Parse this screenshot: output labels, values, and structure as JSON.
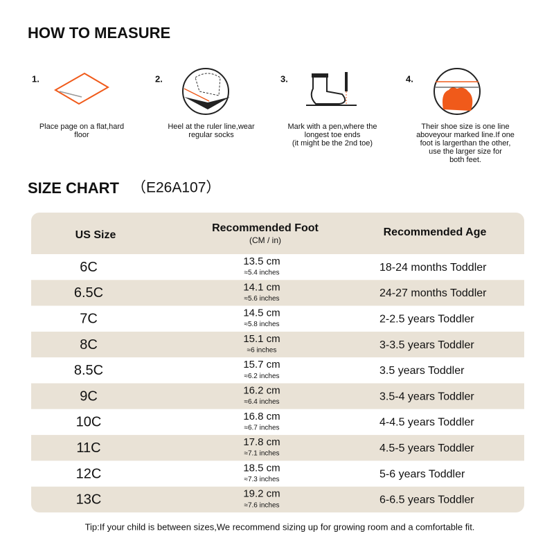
{
  "header": {
    "title": "HOW TO MEASURE"
  },
  "steps": [
    {
      "number": "1.",
      "lines": [
        "Place page on a flat,hard",
        "floor"
      ]
    },
    {
      "number": "2.",
      "lines": [
        "Heel at the ruler line,wear",
        "regular socks"
      ]
    },
    {
      "number": "3.",
      "lines": [
        "Mark with a pen,where the",
        "longest toe ends",
        "(it might be the 2nd toe)"
      ]
    },
    {
      "number": "4.",
      "lines": [
        "Their shoe size is one line",
        "aboveyour marked line.If one",
        "foot is largerthan the other,",
        "use the larger size for",
        "both feet."
      ]
    }
  ],
  "size_chart": {
    "title": "SIZE CHART",
    "code": "（E26A107）",
    "columns": [
      "US Size",
      "Recommended Foot",
      "Recommended Age"
    ],
    "column_sub": "(CM / in)",
    "rows": [
      [
        "6C",
        "13.5 cm",
        "≈5.4 inches",
        "18-24 months Toddler"
      ],
      [
        "6.5C",
        "14.1 cm",
        "≈5.6 inches",
        "24-27 months Toddler"
      ],
      [
        "7C",
        "14.5 cm",
        "≈5.8 inches",
        "2-2.5 years Toddler"
      ],
      [
        "8C",
        "15.1 cm",
        "≈6 inches",
        "3-3.5 years Toddler"
      ],
      [
        "8.5C",
        "15.7 cm",
        "≈6.2 inches",
        "3.5 years Toddler"
      ],
      [
        "9C",
        "16.2 cm",
        "≈6.4 inches",
        "3.5-4 years Toddler"
      ],
      [
        "10C",
        "16.8 cm",
        "≈6.7 inches",
        "4-4.5 years Toddler"
      ],
      [
        "11C",
        "17.8 cm",
        "≈7.1 inches",
        "4.5-5 years Toddler"
      ],
      [
        "12C",
        "18.5 cm",
        "≈7.3 inches",
        "5-6 years Toddler"
      ],
      [
        "13C",
        "19.2 cm",
        "≈7.6 inches",
        "6-6.5 years Toddler"
      ]
    ]
  },
  "tip": "Tip:If your child is between sizes,We recommend sizing up for growing room and a comfortable fit."
}
